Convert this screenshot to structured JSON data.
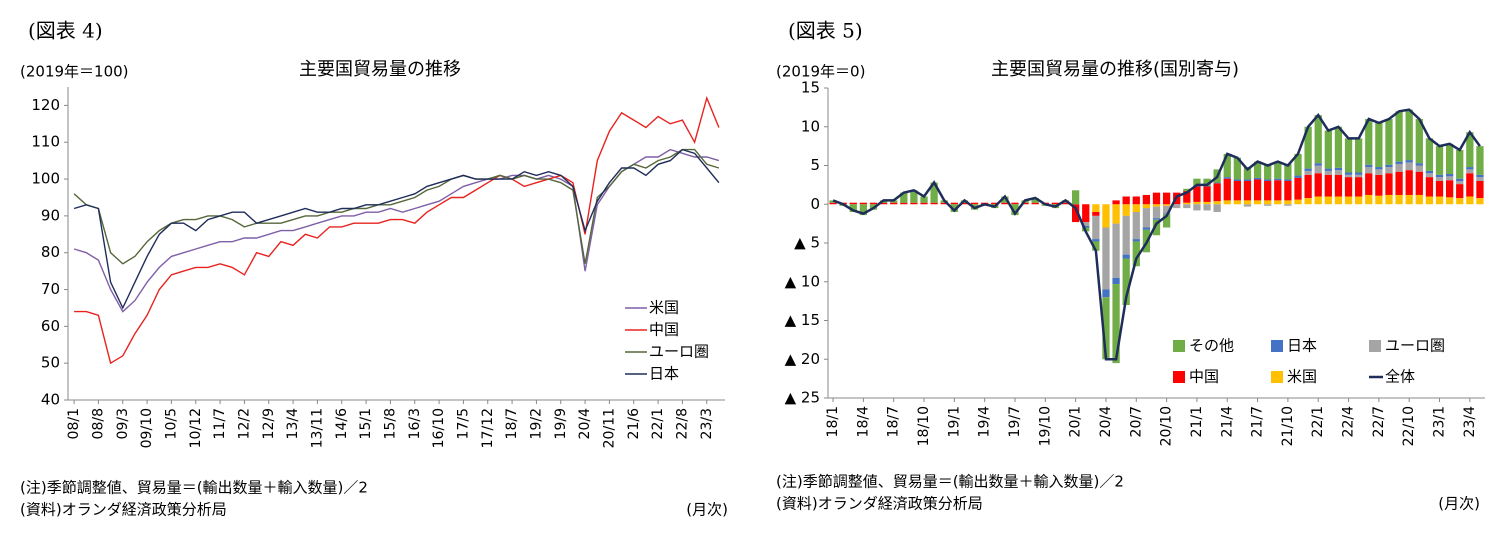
{
  "chart_data": [
    {
      "type": "line",
      "panel_label": "(図表 4)",
      "unit_label": "(2019年＝100)",
      "title": "主要国貿易量の推移",
      "categories": [
        "08/1",
        null,
        "08/8",
        null,
        "09/3",
        null,
        "09/10",
        null,
        "10/5",
        null,
        "10/12",
        null,
        "11/7",
        null,
        "12/2",
        null,
        "12/9",
        null,
        "13/4",
        null,
        "13/11",
        null,
        "14/6",
        null,
        "15/1",
        null,
        "15/8",
        null,
        "16/3",
        null,
        "16/10",
        null,
        "17/5",
        null,
        "17/12",
        null,
        "18/7",
        null,
        "19/2",
        null,
        "19/9",
        null,
        "20/4",
        null,
        "20/11",
        null,
        "21/6",
        null,
        "22/1",
        null,
        "22/8",
        null,
        "23/3",
        null
      ],
      "series": [
        {
          "name": "米国",
          "color": "#7f5fa8",
          "values": [
            81,
            80,
            78,
            70,
            64,
            67,
            72,
            76,
            79,
            80,
            81,
            82,
            83,
            83,
            84,
            84,
            85,
            86,
            86,
            87,
            88,
            89,
            90,
            90,
            91,
            91,
            92,
            91,
            92,
            93,
            94,
            96,
            98,
            99,
            100,
            100,
            101,
            101,
            100,
            101,
            100,
            98,
            75,
            93,
            98,
            102,
            104,
            106,
            106,
            108,
            107,
            106,
            106,
            105
          ]
        },
        {
          "name": "中国",
          "color": "#e8231f",
          "values": [
            64,
            64,
            63,
            50,
            52,
            58,
            63,
            70,
            74,
            75,
            76,
            76,
            77,
            76,
            74,
            80,
            79,
            83,
            82,
            85,
            84,
            87,
            87,
            88,
            88,
            88,
            89,
            89,
            88,
            91,
            93,
            95,
            95,
            97,
            99,
            101,
            100,
            98,
            99,
            100,
            101,
            99,
            85,
            105,
            113,
            118,
            116,
            114,
            117,
            115,
            116,
            110,
            122,
            114
          ]
        },
        {
          "name": "ユーロ圏",
          "color": "#55673a",
          "values": [
            96,
            93,
            92,
            80,
            77,
            79,
            83,
            86,
            88,
            89,
            89,
            90,
            90,
            89,
            87,
            88,
            88,
            88,
            89,
            90,
            90,
            91,
            91,
            92,
            92,
            93,
            93,
            94,
            95,
            97,
            98,
            100,
            101,
            100,
            100,
            101,
            100,
            101,
            100,
            100,
            99,
            97,
            77,
            95,
            98,
            102,
            104,
            103,
            105,
            106,
            108,
            108,
            104,
            103
          ]
        },
        {
          "name": "日本",
          "color": "#1f2d5a",
          "values": [
            92,
            93,
            92,
            72,
            65,
            72,
            79,
            85,
            88,
            88,
            86,
            89,
            90,
            91,
            91,
            88,
            89,
            90,
            91,
            92,
            91,
            91,
            92,
            92,
            93,
            93,
            94,
            95,
            96,
            98,
            99,
            100,
            101,
            100,
            100,
            100,
            100,
            102,
            101,
            102,
            101,
            98,
            86,
            94,
            99,
            103,
            103,
            101,
            104,
            105,
            108,
            107,
            103,
            99
          ]
        }
      ],
      "ylim": [
        40,
        125
      ],
      "yticks": [
        40,
        50,
        60,
        70,
        80,
        90,
        100,
        110,
        120
      ],
      "grid": false,
      "legend": "lower right",
      "notes": [
        "(注)季節調整値、貿易量＝(輸出数量＋輸入数量)／2",
        "(資料)オランダ経済政策分析局"
      ],
      "x_unit": "(月次)"
    },
    {
      "type": "bar",
      "stacked": true,
      "panel_label": "(図表 5)",
      "unit_label": "(2019年＝0)",
      "title": "主要国貿易量の推移(国別寄与)",
      "categories": [
        "18/1",
        null,
        null,
        "18/4",
        null,
        null,
        "18/7",
        null,
        null,
        "18/10",
        null,
        null,
        "19/1",
        null,
        null,
        "19/4",
        null,
        null,
        "19/7",
        null,
        null,
        "19/10",
        null,
        null,
        "20/1",
        null,
        null,
        "20/4",
        null,
        null,
        "20/7",
        null,
        null,
        "20/10",
        null,
        null,
        "21/1",
        null,
        null,
        "21/4",
        null,
        null,
        "21/7",
        null,
        null,
        "21/10",
        null,
        null,
        "22/1",
        null,
        null,
        "22/4",
        null,
        null,
        "22/7",
        null,
        null,
        "22/10",
        null,
        null,
        "23/1",
        null,
        null,
        "23/4",
        null
      ],
      "series": [
        {
          "name": "その他",
          "color": "#70ad47",
          "values": [
            0.3,
            -0.2,
            -1,
            -1.4,
            -0.7,
            0.3,
            0.3,
            1.3,
            1.6,
            0.8,
            2.6,
            0.3,
            -1,
            0.3,
            -0.7,
            -0.2,
            -0.5,
            0.8,
            -1.4,
            0.3,
            0.6,
            -0.2,
            -0.5,
            0.3,
            1.8,
            -0.5,
            -1.2,
            -8,
            -10.2,
            -6,
            -3.2,
            -2.9,
            -2.0,
            -1.7,
            0,
            0.3,
            0.9,
            0.9,
            1.7,
            3.0,
            2.8,
            1.6,
            2.1,
            2.0,
            2.2,
            2.0,
            2.8,
            5.4,
            6.2,
            4.9,
            5.3,
            4.4,
            4.4,
            5.9,
            5.7,
            5.9,
            6.5,
            6.5,
            5.7,
            4.2,
            3.7,
            3.9,
            3.7,
            4.5,
            3.7
          ]
        },
        {
          "name": "日本",
          "color": "#4472c4",
          "values": [
            0,
            0,
            0,
            0,
            0,
            0,
            0,
            0,
            0,
            0,
            0,
            0,
            0,
            0,
            0,
            0,
            0,
            0,
            0,
            0,
            0,
            0,
            0,
            0,
            0,
            -0.2,
            -0.3,
            -1,
            -0.8,
            -0.5,
            -0.3,
            -0.3,
            -0.2,
            -0.1,
            0,
            0,
            0.1,
            0.1,
            0.1,
            0.2,
            0.2,
            0.2,
            0.2,
            0.2,
            0.2,
            0.2,
            0.3,
            0.3,
            0.3,
            0.3,
            0.3,
            0.3,
            0.3,
            0.3,
            0.3,
            0.3,
            0.3,
            0.3,
            0.3,
            0.3,
            0.3,
            0.3,
            0.3,
            0.3,
            0.3
          ]
        },
        {
          "name": "ユーロ圏",
          "color": "#a5a5a5",
          "values": [
            0,
            0,
            0,
            0,
            0,
            0,
            0,
            0,
            0,
            0,
            0,
            0,
            0,
            0,
            0,
            0,
            0,
            0,
            0,
            0,
            0,
            0,
            0,
            0,
            0,
            -0.5,
            -3,
            -8,
            -7,
            -5,
            -3.5,
            -2.5,
            -1.5,
            -1.0,
            -0.5,
            -0.5,
            -0.8,
            -0.8,
            -1.0,
            0,
            0,
            -0.3,
            0,
            -0.2,
            0,
            -0.2,
            0,
            0.5,
            1,
            0.5,
            0.6,
            0.3,
            0.3,
            0.8,
            0.7,
            0.8,
            1.0,
            1.0,
            0.8,
            0.5,
            0.5,
            0.5,
            0.4,
            0.5,
            0.5
          ]
        },
        {
          "name": "中国",
          "color": "#ff0000",
          "values": [
            0.2,
            0.2,
            0.2,
            0.2,
            0.2,
            0.2,
            0.2,
            0.2,
            0.2,
            0.2,
            0.2,
            0.2,
            0.2,
            0.2,
            0.2,
            0.2,
            0.2,
            0.2,
            0.2,
            0.2,
            0.2,
            0.2,
            0.2,
            0.2,
            -2.3,
            -2.3,
            -0.5,
            0,
            0.5,
            1.0,
            1.0,
            1.2,
            1.5,
            1.5,
            1.5,
            1.5,
            2,
            2,
            2.3,
            2.8,
            2.5,
            2.5,
            2.7,
            2.5,
            2.6,
            2.5,
            2.8,
            3,
            3,
            2.8,
            2.8,
            2.5,
            2.5,
            2.8,
            2.7,
            2.8,
            3,
            3.2,
            3,
            2.5,
            2,
            2.2,
            1.8,
            3,
            2.2
          ]
        },
        {
          "name": "米国",
          "color": "#ffc000",
          "values": [
            0,
            0,
            0,
            0,
            0,
            0,
            0,
            0,
            0,
            0,
            0,
            0,
            0,
            0,
            0,
            0,
            0,
            0,
            0,
            0,
            0,
            0,
            0,
            0,
            0,
            0,
            -1.0,
            -3,
            -2.5,
            -1.5,
            -1,
            -0.5,
            -0.3,
            -0.2,
            0,
            0.2,
            0.3,
            0.3,
            0.4,
            0.5,
            0.5,
            0.5,
            0.5,
            0.5,
            0.5,
            0.5,
            0.6,
            0.8,
            1,
            1,
            1,
            1,
            1,
            1.2,
            1.1,
            1.2,
            1.2,
            1.2,
            1.2,
            1,
            1,
            0.9,
            0.8,
            1,
            0.8
          ]
        },
        {
          "name": "全体",
          "type": "line",
          "color": "#1f2d5a",
          "values": [
            0.5,
            0,
            -0.8,
            -1.2,
            -0.5,
            0.5,
            0.5,
            1.5,
            1.8,
            1.0,
            2.8,
            0.5,
            -0.8,
            0.5,
            -0.5,
            0,
            -0.3,
            1.0,
            -1.2,
            0.5,
            0.8,
            0,
            -0.3,
            0.5,
            -0.5,
            -3.5,
            -6,
            -20,
            -20,
            -12,
            -7,
            -5,
            -2.5,
            -1.5,
            1.0,
            1.5,
            2.5,
            2.5,
            3.5,
            6.5,
            6,
            4.5,
            5.5,
            5,
            5.5,
            5,
            6.5,
            10,
            11.5,
            9.5,
            10,
            8.5,
            8.5,
            11,
            10.5,
            11,
            12,
            12.2,
            11,
            8.5,
            7.5,
            7.8,
            7,
            9.3,
            7.5
          ]
        }
      ],
      "ylim": [
        -25,
        15
      ],
      "yticks": [
        {
          "value": -25,
          "label": "▲ 25"
        },
        {
          "value": -20,
          "label": "▲ 20"
        },
        {
          "value": -15,
          "label": "▲ 15"
        },
        {
          "value": -10,
          "label": "▲ 10"
        },
        {
          "value": -5,
          "label": "▲ 5"
        },
        0,
        5,
        10,
        15
      ],
      "grid": false,
      "legend": "lower right",
      "notes": [
        "(注)季節調整値、貿易量＝(輸出数量＋輸入数量)／2",
        "(資料)オランダ経済政策分析局"
      ],
      "x_unit": "(月次)"
    }
  ]
}
